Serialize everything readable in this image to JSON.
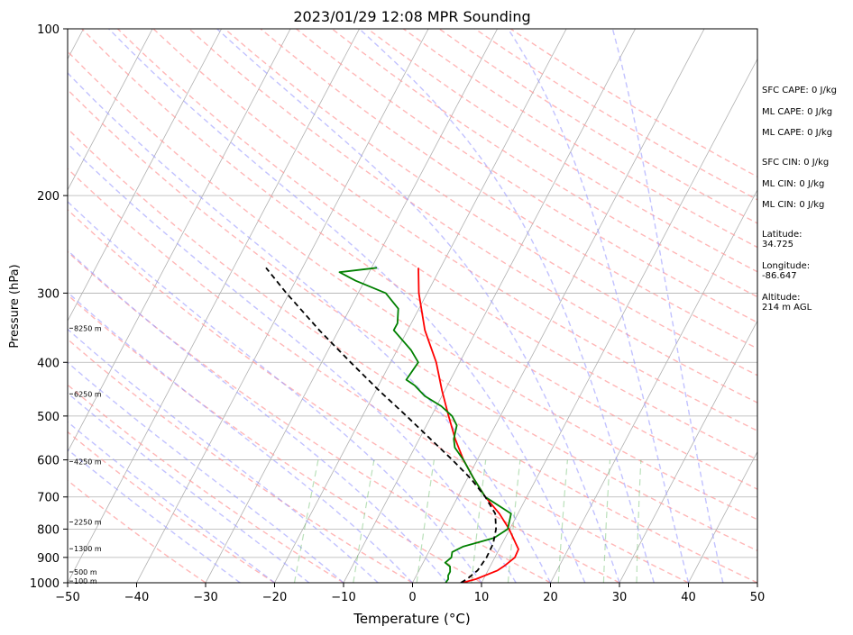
{
  "chart_data": {
    "type": "line",
    "title": "2023/01/29 12:08 MPR Sounding",
    "xlabel": "Temperature (°C)",
    "ylabel": "Pressure (hPa)",
    "xlim": [
      -50,
      50
    ],
    "ylim": [
      1000,
      100
    ],
    "y_scale": "log",
    "x_ticks": [
      "−50",
      "−40",
      "−30",
      "−20",
      "−10",
      "0",
      "10",
      "20",
      "30",
      "40",
      "50"
    ],
    "y_ticks": [
      {
        "p": 100,
        "label": "100"
      },
      {
        "p": 200,
        "label": "200"
      },
      {
        "p": 300,
        "label": "300"
      },
      {
        "p": 400,
        "label": "400"
      },
      {
        "p": 500,
        "label": "500"
      },
      {
        "p": 600,
        "label": "600"
      },
      {
        "p": 700,
        "label": "700"
      },
      {
        "p": 800,
        "label": "800"
      },
      {
        "p": 900,
        "label": "900"
      },
      {
        "p": 1000,
        "label": "1000"
      }
    ],
    "height_labels": [
      {
        "p": 993,
        "label": "100 m"
      },
      {
        "p": 956,
        "label": "500 m"
      },
      {
        "p": 868,
        "label": "1300 m"
      },
      {
        "p": 777,
        "label": "2250 m"
      },
      {
        "p": 604,
        "label": "4250 m"
      },
      {
        "p": 456,
        "label": "6250 m"
      },
      {
        "p": 347,
        "label": "8250 m"
      }
    ],
    "grid": true,
    "series": [
      {
        "role": "temperature",
        "color": "#ff0000",
        "points": [
          [
            1000,
            7.2
          ],
          [
            985,
            8.9
          ],
          [
            950,
            11.4
          ],
          [
            930,
            12.1
          ],
          [
            900,
            12.9
          ],
          [
            870,
            12.8
          ],
          [
            850,
            12.0
          ],
          [
            800,
            9.9
          ],
          [
            750,
            7.3
          ],
          [
            700,
            4.0
          ],
          [
            650,
            1.0
          ],
          [
            600,
            -2.0
          ],
          [
            550,
            -4.8
          ],
          [
            500,
            -7.5
          ],
          [
            450,
            -10.4
          ],
          [
            400,
            -13.4
          ],
          [
            350,
            -17.5
          ],
          [
            300,
            -21.2
          ],
          [
            270,
            -23.2
          ]
        ]
      },
      {
        "role": "dewpoint",
        "color": "#008000",
        "points": [
          [
            1000,
            4.8
          ],
          [
            985,
            4.9
          ],
          [
            970,
            4.6
          ],
          [
            955,
            4.6
          ],
          [
            935,
            4.2
          ],
          [
            920,
            3.2
          ],
          [
            900,
            3.7
          ],
          [
            880,
            3.4
          ],
          [
            860,
            4.6
          ],
          [
            830,
            8.4
          ],
          [
            800,
            9.7
          ],
          [
            750,
            9.0
          ],
          [
            700,
            4.0
          ],
          [
            650,
            1.0
          ],
          [
            600,
            -2.0
          ],
          [
            570,
            -4.2
          ],
          [
            550,
            -5.0
          ],
          [
            520,
            -5.6
          ],
          [
            500,
            -7.0
          ],
          [
            480,
            -9.3
          ],
          [
            460,
            -12.5
          ],
          [
            440,
            -14.8
          ],
          [
            430,
            -16.4
          ],
          [
            400,
            -16.0
          ],
          [
            380,
            -18.0
          ],
          [
            350,
            -22.0
          ],
          [
            340,
            -22.0
          ],
          [
            320,
            -23.0
          ],
          [
            300,
            -26.0
          ],
          [
            285,
            -31.3
          ],
          [
            275,
            -34.3
          ],
          [
            270,
            -29.2
          ]
        ]
      },
      {
        "role": "parcel",
        "color": "#000000",
        "points": [
          [
            1000,
            7.0
          ],
          [
            985,
            7.6
          ],
          [
            950,
            8.5
          ],
          [
            900,
            8.8
          ],
          [
            850,
            8.7
          ],
          [
            800,
            8.0
          ],
          [
            750,
            6.7
          ],
          [
            700,
            4.0
          ],
          [
            650,
            0.6
          ],
          [
            600,
            -3.6
          ],
          [
            550,
            -8.4
          ],
          [
            500,
            -13.6
          ],
          [
            450,
            -19.5
          ],
          [
            400,
            -25.8
          ],
          [
            350,
            -32.8
          ],
          [
            300,
            -40.4
          ],
          [
            270,
            -45.3
          ]
        ]
      }
    ],
    "reference_lines": {
      "isotherm_color": "#b0b0b0",
      "dry_adiabat_color": "#ff9999",
      "moist_adiabat_color": "#9999ff",
      "mixing_ratio_color": "#66bb66"
    },
    "annotations": [
      "SFC CAPE: 0 J/kg",
      "ML CAPE: 0 J/kg",
      "ML CAPE: 0 J/kg",
      "SFC CIN: 0 J/kg",
      "ML CIN: 0 J/kg",
      "ML CIN: 0 J/kg",
      "Latitude:\n34.725",
      "Longitude:\n-86.647",
      "Altitude:\n214 m AGL"
    ]
  }
}
